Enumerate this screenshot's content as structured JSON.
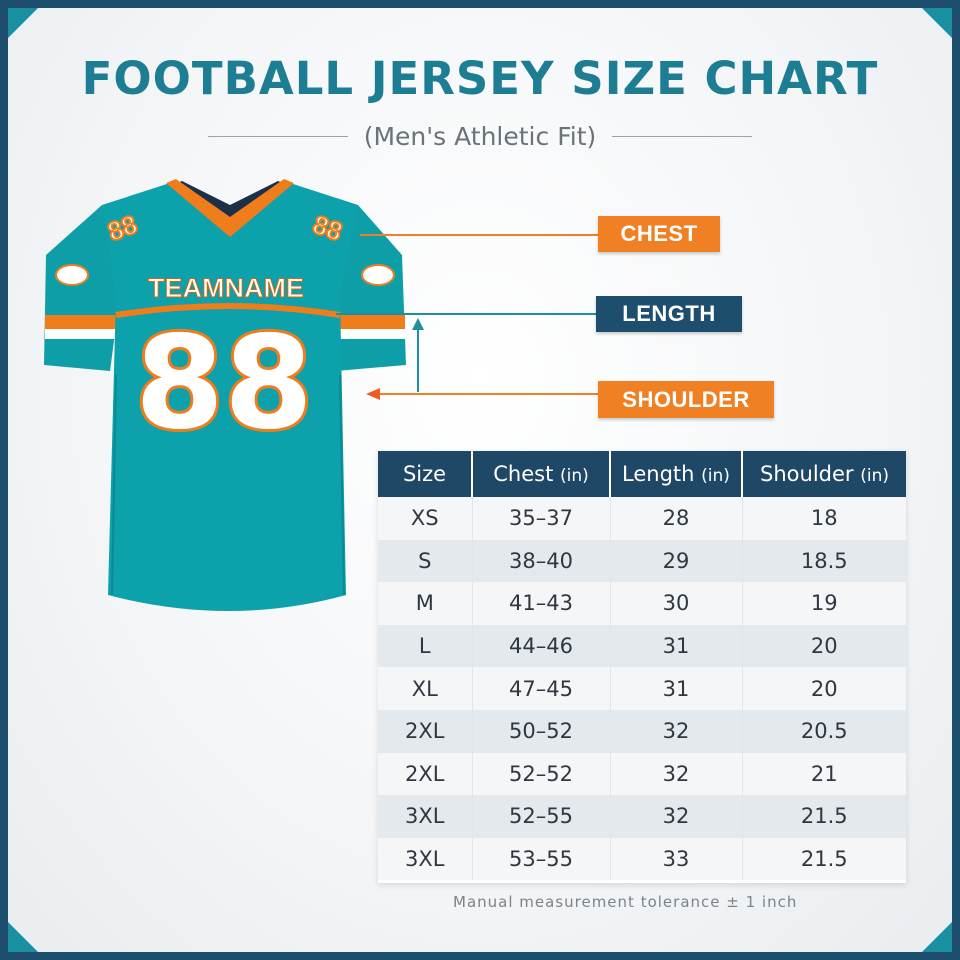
{
  "header": {
    "title": "FOOTBALL JERSEY SIZE CHART",
    "subtitle": "(Men's Athletic Fit)"
  },
  "jersey": {
    "team_name": "TEAMNAME",
    "number": "88",
    "sleeve_number": "88",
    "colors": {
      "body": "#0e9ea8",
      "accent": "#f07d1c",
      "trim": "#ffffff",
      "collar_inner": "#1d3047"
    }
  },
  "callouts": [
    {
      "label": "CHEST",
      "color": "#f08024"
    },
    {
      "label": "LENGTH",
      "color": "#1d4e6e"
    },
    {
      "label": "SHOULDER",
      "color": "#f08024"
    }
  ],
  "table": {
    "headers": [
      {
        "label": "Size",
        "unit": ""
      },
      {
        "label": "Chest",
        "unit": "(in)"
      },
      {
        "label": "Length",
        "unit": "(in)"
      },
      {
        "label": "Shoulder",
        "unit": "(in)"
      }
    ],
    "rows": [
      [
        "XS",
        "35–37",
        "28",
        "18"
      ],
      [
        "S",
        "38–40",
        "29",
        "18.5"
      ],
      [
        "M",
        "41–43",
        "30",
        "19"
      ],
      [
        "L",
        "44–46",
        "31",
        "20"
      ],
      [
        "XL",
        "47–45",
        "31",
        "20"
      ],
      [
        "2XL",
        "50–52",
        "32",
        "20.5"
      ],
      [
        "2XL",
        "52–52",
        "32",
        "21"
      ],
      [
        "3XL",
        "52–55",
        "32",
        "21.5"
      ],
      [
        "3XL",
        "53–55",
        "33",
        "21.5"
      ]
    ],
    "header_color": "#1f4766"
  },
  "footer": {
    "note": "Manual measurement tolerance ± 1 inch"
  }
}
